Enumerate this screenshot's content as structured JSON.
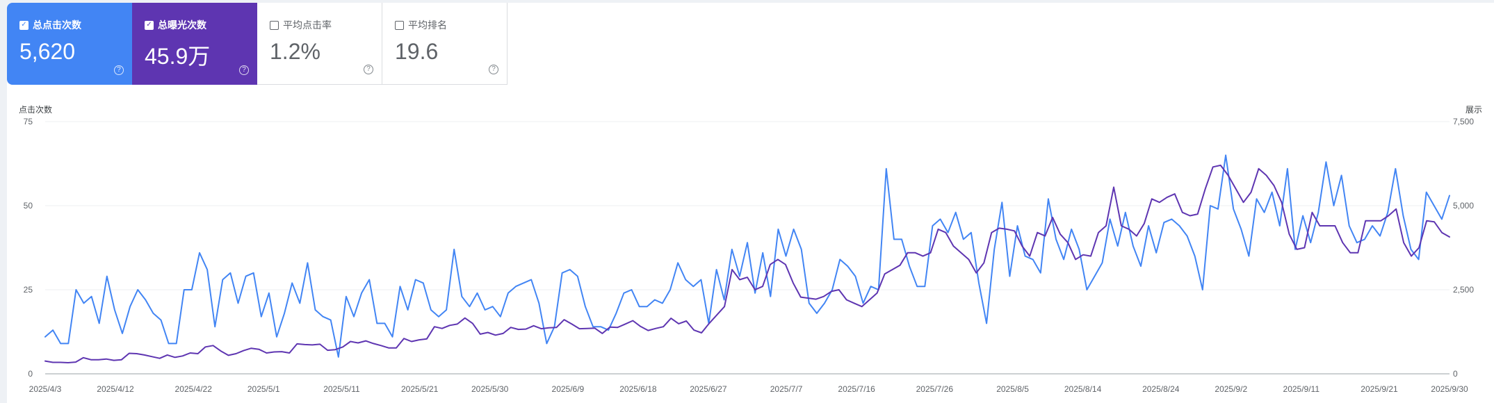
{
  "metrics": [
    {
      "label": "总点击次数",
      "value": "5,620",
      "checked": true,
      "color": "#4285f4"
    },
    {
      "label": "总曝光次数",
      "value": "45.9万",
      "checked": true,
      "color": "#5e35b1"
    },
    {
      "label": "平均点击率",
      "value": "1.2%",
      "checked": false
    },
    {
      "label": "平均排名",
      "value": "19.6",
      "checked": false
    }
  ],
  "icons": {
    "checkbox": "check-icon",
    "help": "help-circle-icon"
  },
  "chart_data": {
    "type": "line",
    "ylabel_left": "点击次数",
    "ylabel_right": "展示",
    "y_left_ticks": [
      "0",
      "25",
      "50",
      "75"
    ],
    "y_right_ticks": [
      "0",
      "2,500",
      "5,000",
      "7,500"
    ],
    "ylim_left": [
      0,
      75
    ],
    "ylim_right": [
      0,
      7500
    ],
    "grid": true,
    "x_tick_labels": [
      "2025/4/3",
      "2025/4/12",
      "2025/4/22",
      "2025/5/1",
      "2025/5/11",
      "2025/5/21",
      "2025/5/30",
      "2025/6/9",
      "2025/6/18",
      "2025/6/27",
      "2025/7/7",
      "2025/7/16",
      "2025/7/26",
      "2025/8/5",
      "2025/8/14",
      "2025/8/24",
      "2025/9/2",
      "2025/9/11",
      "2025/9/21",
      "2025/9/30"
    ],
    "x_start": "2025/4/3",
    "x_end": "2025/9/30",
    "series": [
      {
        "name": "总点击次数",
        "axis": "left",
        "color": "#4285f4",
        "values": [
          11,
          13,
          9,
          9,
          25,
          21,
          23,
          15,
          29,
          19,
          12,
          20,
          25,
          22,
          18,
          16,
          9,
          9,
          25,
          25,
          36,
          31,
          14,
          28,
          30,
          21,
          29,
          30,
          17,
          24,
          11,
          18,
          27,
          21,
          33,
          19,
          17,
          16,
          5,
          23,
          17,
          24,
          28,
          15,
          15,
          11,
          26,
          19,
          28,
          27,
          19,
          17,
          19,
          37,
          23,
          20,
          24,
          19,
          20,
          17,
          24,
          26,
          27,
          28,
          21,
          9,
          14,
          30,
          31,
          29,
          20,
          14,
          14,
          13,
          18,
          24,
          25,
          20,
          20,
          22,
          21,
          25,
          33,
          28,
          26,
          28,
          15,
          31,
          22,
          37,
          29,
          39,
          24,
          36,
          23,
          43,
          35,
          43,
          37,
          21,
          18,
          21,
          25,
          34,
          32,
          29,
          21,
          26,
          25,
          61,
          40,
          40,
          32,
          26,
          26,
          44,
          46,
          42,
          48,
          40,
          42,
          27,
          15,
          37,
          51,
          29,
          44,
          35,
          34,
          30,
          52,
          40,
          34,
          43,
          37,
          25,
          29,
          33,
          46,
          38,
          48,
          38,
          32,
          44,
          36,
          45,
          46,
          44,
          41,
          35,
          25,
          50,
          49,
          65,
          49,
          43,
          35,
          52,
          48,
          54,
          44,
          61,
          37,
          47,
          39,
          48,
          63,
          50,
          59,
          44,
          39,
          40,
          44,
          41,
          48,
          61,
          47,
          37,
          34,
          54,
          50,
          46,
          53
        ]
      },
      {
        "name": "总曝光次数",
        "axis": "right",
        "color": "#5e35b1",
        "values": [
          380,
          340,
          340,
          330,
          350,
          480,
          420,
          420,
          440,
          400,
          420,
          610,
          600,
          560,
          510,
          460,
          560,
          490,
          530,
          620,
          600,
          800,
          840,
          680,
          550,
          600,
          690,
          760,
          730,
          620,
          650,
          660,
          620,
          890,
          870,
          860,
          880,
          700,
          720,
          800,
          960,
          920,
          980,
          900,
          840,
          770,
          770,
          1050,
          960,
          1010,
          1040,
          1400,
          1350,
          1440,
          1480,
          1660,
          1500,
          1180,
          1230,
          1150,
          1200,
          1380,
          1320,
          1330,
          1430,
          1340,
          1370,
          1380,
          1610,
          1480,
          1340,
          1350,
          1360,
          1200,
          1390,
          1380,
          1480,
          1580,
          1410,
          1290,
          1350,
          1400,
          1650,
          1490,
          1570,
          1300,
          1220,
          1500,
          1750,
          2000,
          3100,
          2800,
          2870,
          2500,
          2600,
          3250,
          3400,
          3250,
          2700,
          2280,
          2250,
          2220,
          2300,
          2450,
          2500,
          2200,
          2100,
          2000,
          2200,
          2400,
          2970,
          3100,
          3230,
          3600,
          3600,
          3500,
          3600,
          4300,
          4200,
          3800,
          3600,
          3400,
          3000,
          3300,
          4200,
          4330,
          4300,
          4250,
          3800,
          3500,
          4200,
          4100,
          4650,
          4150,
          3900,
          3400,
          3540,
          3500,
          4200,
          4400,
          5550,
          4400,
          4300,
          4100,
          4470,
          5200,
          5100,
          5250,
          5350,
          4800,
          4700,
          4750,
          5500,
          6150,
          6200,
          5900,
          5500,
          5100,
          5400,
          6100,
          5900,
          5600,
          5100,
          4150,
          3700,
          3750,
          4800,
          4400,
          4400,
          4400,
          3900,
          3600,
          3600,
          4550,
          4550,
          4550,
          4700,
          4900,
          3900,
          3500,
          3750,
          4550,
          4520,
          4200,
          4070
        ]
      }
    ]
  }
}
